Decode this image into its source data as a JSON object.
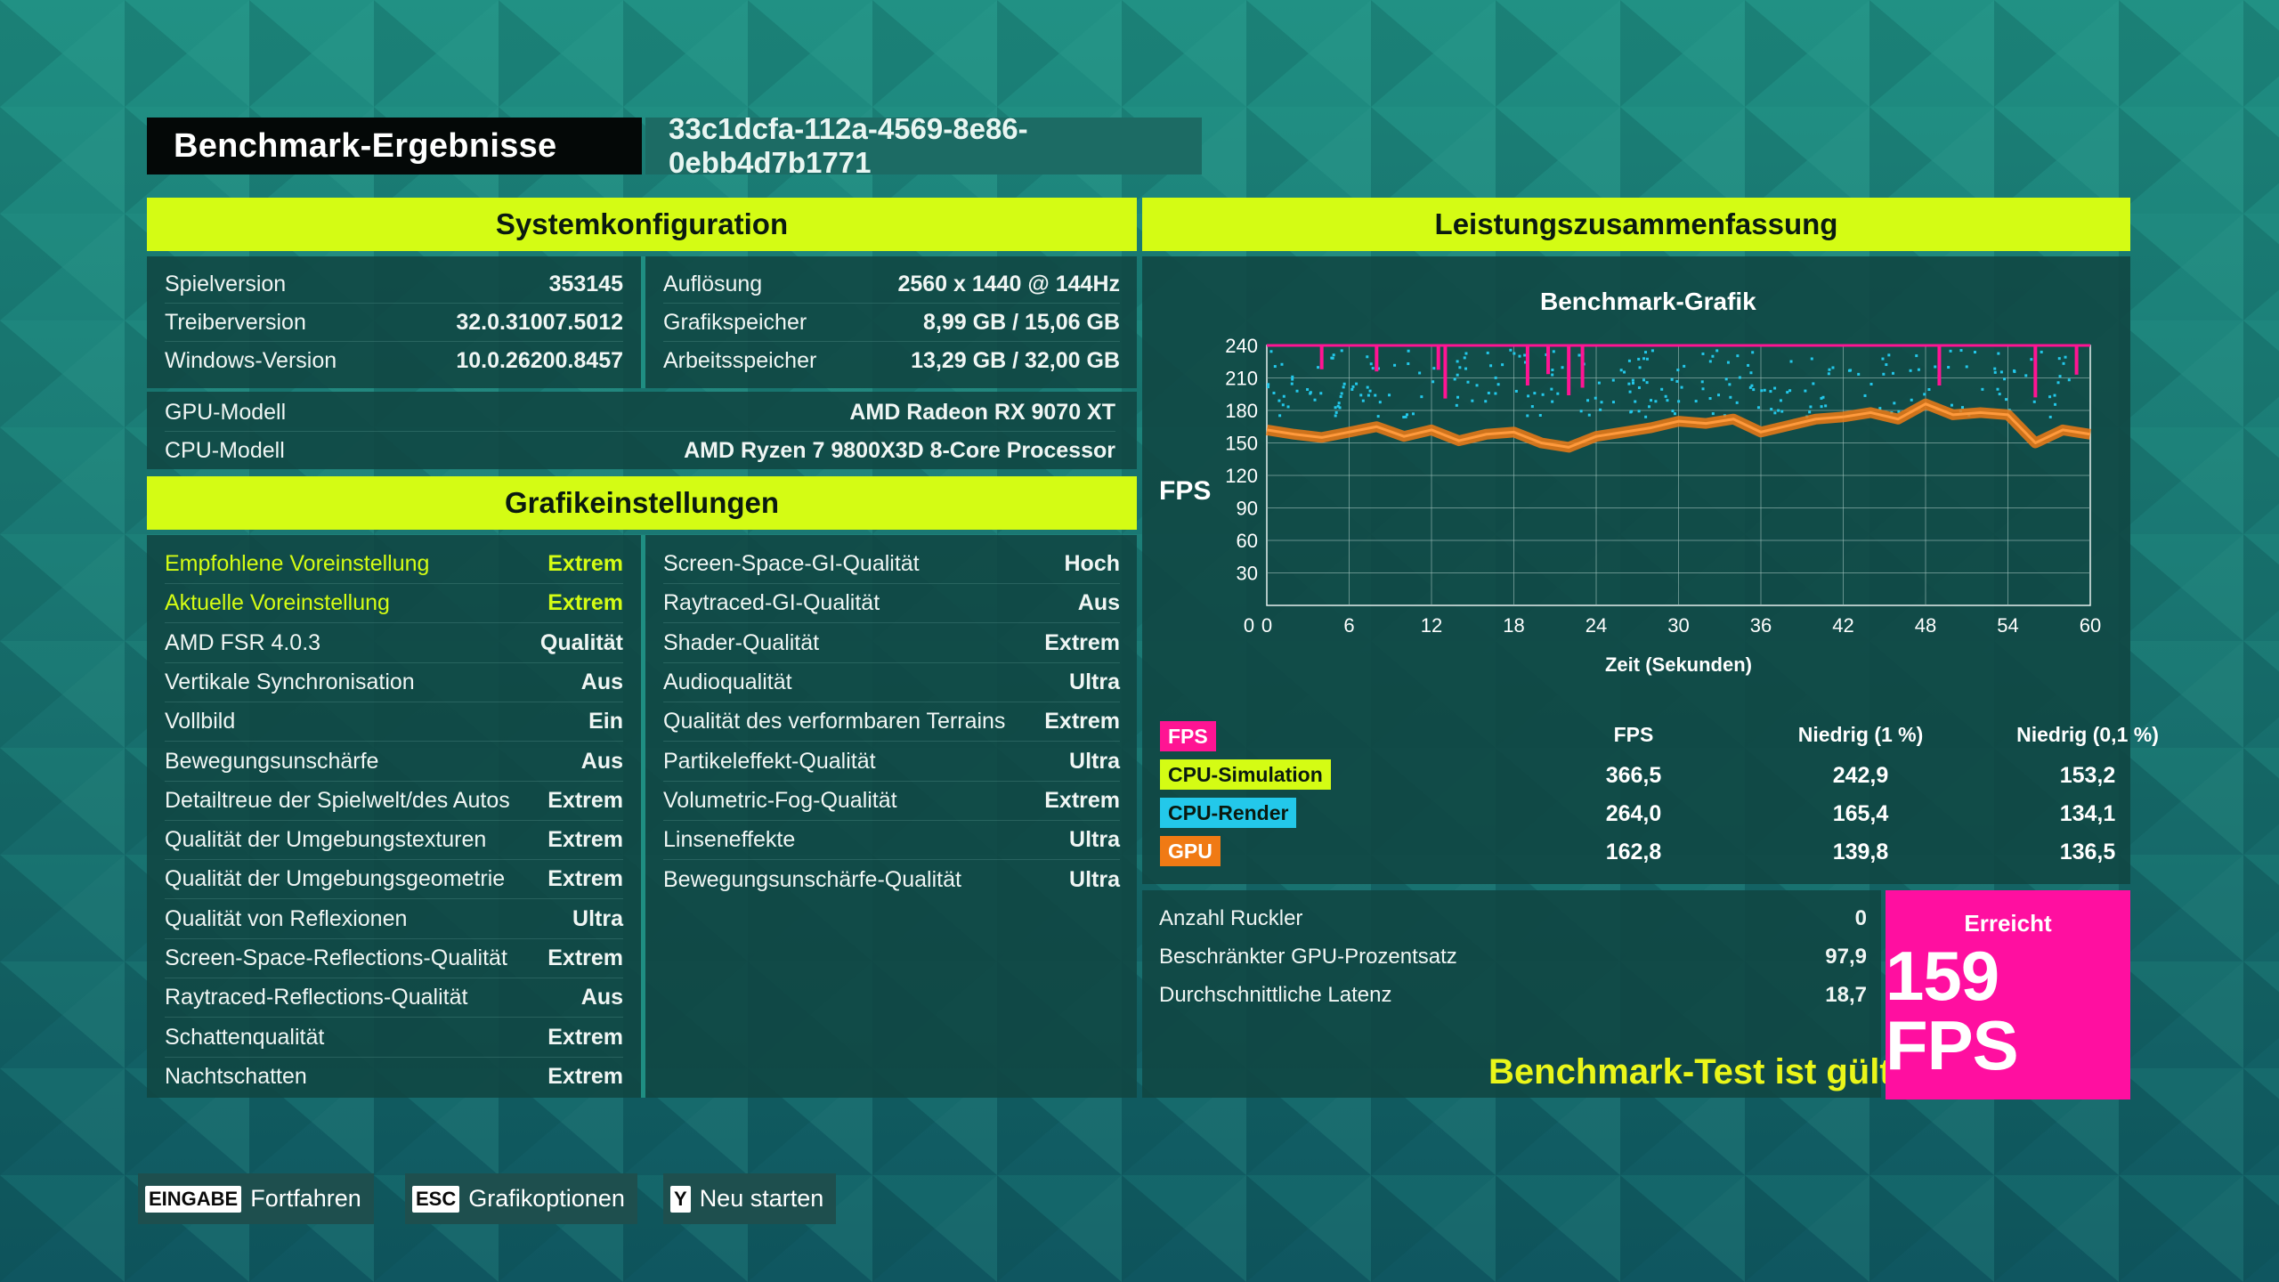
{
  "header": {
    "title": "Benchmark-Ergebnisse",
    "run_id": "33c1dcfa-112a-4569-8e86-0ebb4d7b1771"
  },
  "system": {
    "heading": "Systemkonfiguration",
    "left": [
      {
        "label": "Spielversion",
        "value": "353145"
      },
      {
        "label": "Treiberversion",
        "value": "32.0.31007.5012"
      },
      {
        "label": "Windows-Version",
        "value": "10.0.26200.8457"
      }
    ],
    "right": [
      {
        "label": "Auflösung",
        "value": "2560 x 1440 @ 144Hz"
      },
      {
        "label": "Grafikspeicher",
        "value": "8,99 GB / 15,06 GB"
      },
      {
        "label": "Arbeitsspeicher",
        "value": "13,29 GB / 32,00 GB"
      }
    ],
    "hardware": [
      {
        "label": "GPU-Modell",
        "value": "AMD Radeon RX 9070 XT"
      },
      {
        "label": "CPU-Modell",
        "value": "AMD Ryzen 7 9800X3D 8-Core Processor"
      }
    ]
  },
  "graphics": {
    "heading": "Grafikeinstellungen",
    "left": [
      {
        "label": "Empfohlene Voreinstellung",
        "value": "Extrem"
      },
      {
        "label": "Aktuelle Voreinstellung",
        "value": "Extrem"
      },
      {
        "label": "AMD FSR 4.0.3",
        "value": "Qualität"
      },
      {
        "label": "Vertikale Synchronisation",
        "value": "Aus"
      },
      {
        "label": "Vollbild",
        "value": "Ein"
      },
      {
        "label": "Bewegungsunschärfe",
        "value": "Aus"
      },
      {
        "label": "Detailtreue der Spielwelt/des Autos",
        "value": "Extrem"
      },
      {
        "label": "Qualität der Umgebungstexturen",
        "value": "Extrem"
      },
      {
        "label": "Qualität der Umgebungsgeometrie",
        "value": "Extrem"
      },
      {
        "label": "Qualität von Reflexionen",
        "value": "Ultra"
      },
      {
        "label": "Screen-Space-Reflections-Qualität",
        "value": "Extrem"
      },
      {
        "label": "Raytraced-Reflections-Qualität",
        "value": "Aus"
      },
      {
        "label": "Schattenqualität",
        "value": "Extrem"
      },
      {
        "label": "Nachtschatten",
        "value": "Extrem"
      }
    ],
    "right": [
      {
        "label": "Screen-Space-GI-Qualität",
        "value": "Hoch"
      },
      {
        "label": "Raytraced-GI-Qualität",
        "value": "Aus"
      },
      {
        "label": "Shader-Qualität",
        "value": "Extrem"
      },
      {
        "label": "Audioqualität",
        "value": "Ultra"
      },
      {
        "label": "Qualität des verformbaren Terrains",
        "value": "Extrem"
      },
      {
        "label": "Partikeleffekt-Qualität",
        "value": "Ultra"
      },
      {
        "label": "Volumetric-Fog-Qualität",
        "value": "Extrem"
      },
      {
        "label": "Linseneffekte",
        "value": "Ultra"
      },
      {
        "label": "Bewegungsunschärfe-Qualität",
        "value": "Ultra"
      }
    ]
  },
  "summary": {
    "heading": "Leistungszusammenfassung",
    "y_axis_label": "FPS",
    "columns": [
      "FPS",
      "Niedrig (1 %)",
      "Niedrig (0,1 %)"
    ],
    "rows": [
      {
        "name": "FPS",
        "color": "#ff1493",
        "text_color": "#ffffff",
        "values": [
          "",
          "",
          ""
        ]
      },
      {
        "name": "CPU-Simulation",
        "color": "#d4fc14",
        "text_color": "#0a1a10",
        "values": [
          "366,5",
          "242,9",
          "153,2"
        ]
      },
      {
        "name": "CPU-Render",
        "color": "#23c8ea",
        "text_color": "#0a1a10",
        "values": [
          "264,0",
          "165,4",
          "134,1"
        ]
      },
      {
        "name": "GPU",
        "color": "#f07a14",
        "text_color": "#ffffff",
        "values": [
          "162,8",
          "139,8",
          "136,5"
        ]
      }
    ],
    "stats": [
      {
        "label": "Anzahl Ruckler",
        "value": "0"
      },
      {
        "label": "Beschränkter GPU-Prozentsatz",
        "value": "97,9"
      },
      {
        "label": "Durchschnittliche Latenz",
        "value": "18,7"
      }
    ],
    "valid_text": "Benchmark-Test ist gültig",
    "result_label": "Erreicht",
    "result_value": "159 FPS"
  },
  "chart_data": {
    "type": "line",
    "title": "Benchmark-Grafik",
    "xlabel": "Zeit (Sekunden)",
    "ylabel": "FPS",
    "xlim": [
      0,
      60
    ],
    "ylim": [
      0,
      240
    ],
    "x_ticks": [
      "0",
      "6",
      "12",
      "18",
      "24",
      "30",
      "36",
      "42",
      "48",
      "54",
      "60"
    ],
    "y_ticks": [
      "30",
      "60",
      "90",
      "120",
      "150",
      "180",
      "210",
      "240"
    ],
    "grid": true,
    "series": [
      {
        "name": "GPU",
        "color": "#f07a14",
        "x": [
          0,
          2,
          4,
          6,
          8,
          10,
          12,
          14,
          16,
          18,
          20,
          22,
          24,
          26,
          28,
          30,
          32,
          34,
          36,
          38,
          40,
          42,
          44,
          46,
          48,
          50,
          52,
          54,
          56,
          58,
          60
        ],
        "y": [
          162,
          158,
          155,
          160,
          165,
          156,
          162,
          152,
          158,
          160,
          150,
          146,
          156,
          160,
          164,
          170,
          168,
          172,
          160,
          166,
          172,
          174,
          178,
          172,
          186,
          176,
          178,
          176,
          150,
          162,
          158
        ]
      },
      {
        "name": "CPU-Render",
        "color": "#23c8ea",
        "x": [
          0,
          5,
          10,
          15,
          20,
          25,
          30,
          35,
          40,
          45,
          50,
          55,
          60
        ],
        "y": [
          225,
          210,
          200,
          215,
          190,
          205,
          220,
          195,
          210,
          200,
          215,
          190,
          205
        ]
      },
      {
        "name": "FPS",
        "color": "#ff1493",
        "x": [
          0,
          60
        ],
        "y": [
          240,
          240
        ]
      }
    ]
  },
  "footer": [
    {
      "key": "EINGABE",
      "label": "Fortfahren"
    },
    {
      "key": "ESC",
      "label": "Grafikoptionen"
    },
    {
      "key": "Y",
      "label": "Neu starten"
    }
  ]
}
